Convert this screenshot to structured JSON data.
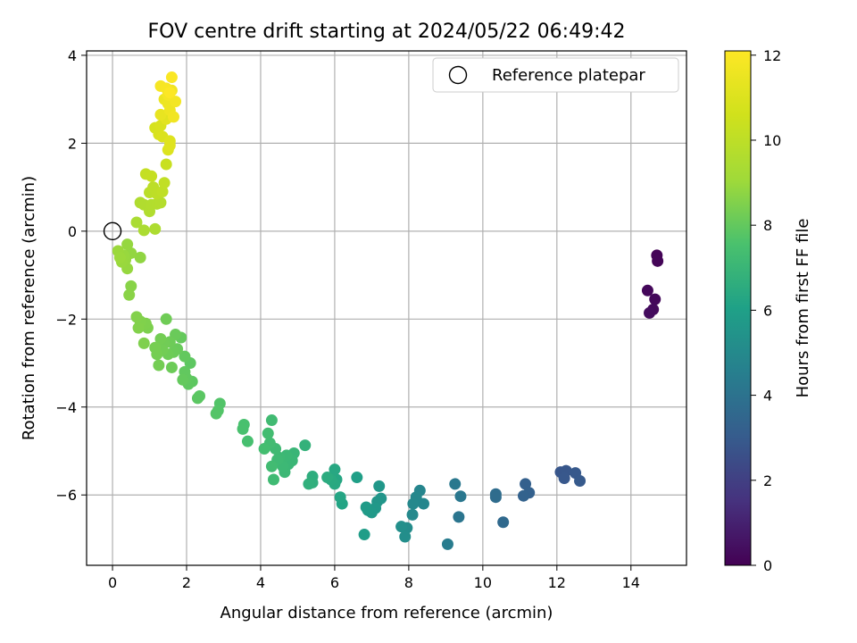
{
  "chart_data": {
    "type": "scatter",
    "title": "FOV centre drift starting at 2024/05/22 06:49:42",
    "xlabel": "Angular distance from reference (arcmin)",
    "ylabel": "Rotation from reference (arcmin)",
    "xlim": [
      -0.7,
      15.5
    ],
    "ylim": [
      -7.6,
      4.1
    ],
    "xticks": [
      0,
      2,
      4,
      6,
      8,
      10,
      12,
      14
    ],
    "yticks": [
      -6,
      -4,
      -2,
      0,
      2,
      4
    ],
    "grid": true,
    "legend": {
      "position": "top-right",
      "entries": [
        "Reference platepar"
      ]
    },
    "colorbar": {
      "label": "Hours from first FF file",
      "range": [
        0,
        12.1
      ],
      "ticks": [
        0,
        2,
        4,
        6,
        8,
        10,
        12
      ],
      "colormap": "viridis"
    },
    "reference_point": {
      "x": 0,
      "y": 0,
      "label": "Reference platepar"
    },
    "points": [
      [
        14.7,
        -0.55,
        0.1
      ],
      [
        14.72,
        -0.68,
        0.12
      ],
      [
        14.45,
        -1.35,
        0.2
      ],
      [
        14.65,
        -1.55,
        0.25
      ],
      [
        14.6,
        -1.78,
        0.3
      ],
      [
        14.5,
        -1.86,
        0.35
      ],
      [
        12.1,
        -5.48,
        2.8
      ],
      [
        12.25,
        -5.45,
        2.85
      ],
      [
        12.5,
        -5.5,
        2.9
      ],
      [
        12.62,
        -5.68,
        2.95
      ],
      [
        12.2,
        -5.62,
        2.88
      ],
      [
        11.15,
        -5.75,
        3.2
      ],
      [
        11.25,
        -5.95,
        3.25
      ],
      [
        11.1,
        -6.02,
        3.3
      ],
      [
        10.55,
        -6.62,
        3.6
      ],
      [
        10.35,
        -5.98,
        3.7
      ],
      [
        10.35,
        -6.05,
        3.72
      ],
      [
        9.35,
        -6.5,
        4.1
      ],
      [
        9.4,
        -6.03,
        4.2
      ],
      [
        9.25,
        -5.75,
        4.25
      ],
      [
        9.05,
        -7.12,
        4.4
      ],
      [
        8.3,
        -5.9,
        4.8
      ],
      [
        8.4,
        -6.2,
        4.85
      ],
      [
        8.2,
        -6.05,
        4.9
      ],
      [
        8.12,
        -6.2,
        4.95
      ],
      [
        8.1,
        -6.45,
        5.0
      ],
      [
        7.95,
        -6.75,
        5.1
      ],
      [
        7.9,
        -6.95,
        5.2
      ],
      [
        7.8,
        -6.72,
        5.25
      ],
      [
        7.25,
        -6.08,
        5.5
      ],
      [
        7.15,
        -6.15,
        5.55
      ],
      [
        7.2,
        -5.8,
        5.6
      ],
      [
        7.1,
        -6.3,
        5.65
      ],
      [
        7.0,
        -6.4,
        5.7
      ],
      [
        6.9,
        -6.35,
        5.75
      ],
      [
        6.85,
        -6.28,
        5.8
      ],
      [
        6.8,
        -6.9,
        5.85
      ],
      [
        6.6,
        -5.6,
        5.95
      ],
      [
        6.2,
        -6.2,
        6.2
      ],
      [
        6.15,
        -6.05,
        6.25
      ],
      [
        6.05,
        -5.65,
        6.3
      ],
      [
        6.0,
        -5.42,
        6.35
      ],
      [
        6.0,
        -5.75,
        6.4
      ],
      [
        5.9,
        -5.65,
        6.45
      ],
      [
        5.8,
        -5.6,
        6.5
      ],
      [
        5.4,
        -5.58,
        6.6
      ],
      [
        5.4,
        -5.72,
        6.65
      ],
      [
        5.3,
        -5.75,
        6.7
      ],
      [
        5.2,
        -4.87,
        6.8
      ],
      [
        4.9,
        -5.05,
        7.0
      ],
      [
        4.85,
        -5.22,
        7.02
      ],
      [
        4.75,
        -5.3,
        7.05
      ],
      [
        4.7,
        -5.1,
        7.08
      ],
      [
        4.65,
        -5.48,
        7.1
      ],
      [
        4.6,
        -5.35,
        7.12
      ],
      [
        4.5,
        -5.15,
        7.15
      ],
      [
        4.45,
        -5.2,
        7.18
      ],
      [
        4.4,
        -4.95,
        7.2
      ],
      [
        4.35,
        -5.65,
        7.22
      ],
      [
        4.3,
        -4.3,
        7.25
      ],
      [
        4.3,
        -5.35,
        7.28
      ],
      [
        4.25,
        -4.82,
        7.3
      ],
      [
        4.2,
        -4.6,
        7.33
      ],
      [
        4.1,
        -4.95,
        7.36
      ],
      [
        3.65,
        -4.78,
        7.45
      ],
      [
        3.55,
        -4.4,
        7.5
      ],
      [
        3.52,
        -4.5,
        7.52
      ],
      [
        2.9,
        -3.92,
        7.7
      ],
      [
        2.85,
        -4.08,
        7.72
      ],
      [
        2.8,
        -4.15,
        7.74
      ],
      [
        2.35,
        -3.75,
        7.85
      ],
      [
        2.3,
        -3.8,
        7.87
      ],
      [
        2.15,
        -3.42,
        7.9
      ],
      [
        2.1,
        -3.0,
        7.92
      ],
      [
        2.05,
        -3.48,
        7.94
      ],
      [
        2.0,
        -3.35,
        7.96
      ],
      [
        1.95,
        -3.2,
        7.98
      ],
      [
        1.95,
        -2.85,
        8.0
      ],
      [
        1.9,
        -3.38,
        8.02
      ],
      [
        1.85,
        -2.42,
        8.04
      ],
      [
        1.75,
        -2.68,
        8.1
      ],
      [
        1.7,
        -2.35,
        8.12
      ],
      [
        1.65,
        -2.75,
        8.14
      ],
      [
        1.6,
        -3.1,
        8.16
      ],
      [
        1.55,
        -2.52,
        8.18
      ],
      [
        1.5,
        -2.8,
        8.2
      ],
      [
        1.45,
        -2.0,
        8.22
      ],
      [
        1.4,
        -2.55,
        8.24
      ],
      [
        1.35,
        -2.7,
        8.26
      ],
      [
        1.3,
        -2.45,
        8.28
      ],
      [
        1.25,
        -3.05,
        8.3
      ],
      [
        1.2,
        -2.8,
        8.32
      ],
      [
        1.15,
        -2.65,
        8.34
      ],
      [
        0.95,
        -2.2,
        8.45
      ],
      [
        0.9,
        -2.1,
        8.48
      ],
      [
        0.85,
        -2.55,
        8.5
      ],
      [
        0.75,
        -2.05,
        8.52
      ],
      [
        0.7,
        -2.2,
        8.54
      ],
      [
        0.65,
        -1.95,
        8.56
      ],
      [
        0.5,
        -1.25,
        8.65
      ],
      [
        0.45,
        -1.45,
        8.68
      ],
      [
        0.75,
        -0.6,
        8.8
      ],
      [
        0.5,
        -0.5,
        8.85
      ],
      [
        0.4,
        -0.3,
        8.88
      ],
      [
        0.4,
        -0.85,
        8.9
      ],
      [
        0.35,
        -0.65,
        8.92
      ],
      [
        0.3,
        -0.55,
        8.94
      ],
      [
        0.25,
        -0.7,
        8.96
      ],
      [
        0.15,
        -0.45,
        8.98
      ],
      [
        0.2,
        -0.6,
        9.0
      ],
      [
        0.65,
        0.2,
        9.4
      ],
      [
        0.85,
        0.02,
        9.45
      ],
      [
        1.15,
        0.05,
        9.5
      ],
      [
        0.75,
        0.65,
        9.55
      ],
      [
        0.85,
        0.6,
        9.6
      ],
      [
        1.0,
        0.45,
        9.62
      ],
      [
        1.05,
        0.6,
        9.65
      ],
      [
        1.2,
        0.62,
        9.68
      ],
      [
        1.3,
        0.65,
        9.7
      ],
      [
        1.0,
        0.88,
        9.9
      ],
      [
        1.1,
        1.0,
        9.95
      ],
      [
        1.2,
        0.85,
        10.0
      ],
      [
        1.35,
        0.9,
        10.05
      ],
      [
        1.4,
        1.1,
        10.1
      ],
      [
        0.9,
        1.3,
        10.2
      ],
      [
        1.05,
        1.25,
        10.25
      ],
      [
        1.45,
        1.52,
        10.35
      ],
      [
        1.15,
        2.35,
        10.8
      ],
      [
        1.25,
        2.2,
        10.85
      ],
      [
        1.3,
        2.4,
        10.9
      ],
      [
        1.35,
        2.15,
        10.95
      ],
      [
        1.5,
        1.85,
        11.0
      ],
      [
        1.55,
        2.05,
        11.05
      ],
      [
        1.55,
        1.95,
        11.1
      ],
      [
        1.45,
        2.55,
        11.2
      ],
      [
        1.3,
        2.65,
        11.4
      ],
      [
        1.4,
        3.0,
        11.5
      ],
      [
        1.5,
        2.9,
        11.55
      ],
      [
        1.55,
        2.75,
        11.6
      ],
      [
        1.6,
        3.2,
        11.65
      ],
      [
        1.65,
        2.6,
        11.7
      ],
      [
        1.7,
        2.95,
        11.75
      ],
      [
        1.5,
        3.1,
        11.8
      ],
      [
        1.3,
        3.3,
        11.85
      ],
      [
        1.45,
        3.25,
        11.9
      ],
      [
        1.6,
        3.5,
        12.0
      ],
      [
        1.55,
        3.15,
        12.05
      ]
    ]
  }
}
